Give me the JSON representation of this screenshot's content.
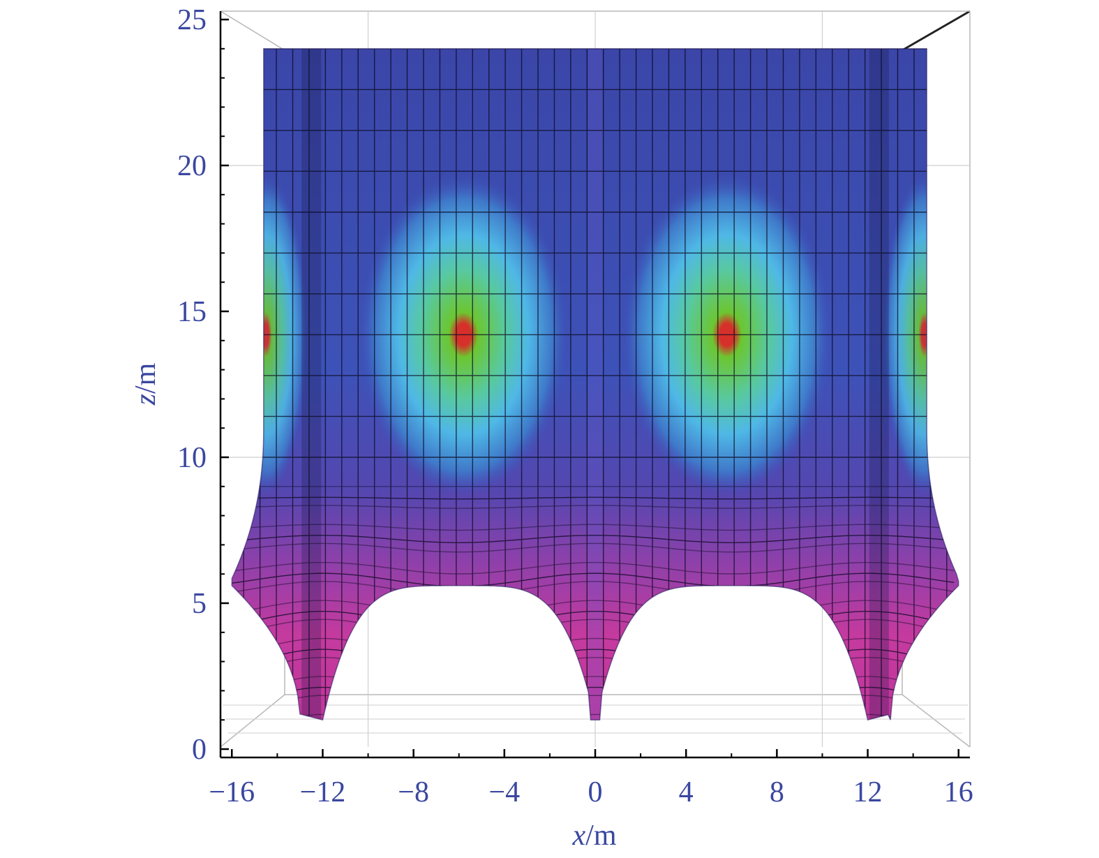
{
  "chart_data": {
    "type": "surface",
    "title": "",
    "xlabel": {
      "var": "x",
      "unit": "/m"
    },
    "ylabel": {
      "var": "z",
      "unit": "/m"
    },
    "xlim": [
      -16.5,
      16.5
    ],
    "ylim": [
      0,
      25
    ],
    "x_ticks": [
      -16,
      -12,
      -8,
      -4,
      0,
      4,
      8,
      12,
      16
    ],
    "y_ticks": [
      0,
      5,
      10,
      15,
      20,
      25
    ],
    "x_tick_labels": [
      "−16",
      "−12",
      "−8",
      "−4",
      "0",
      "4",
      "8",
      "12",
      "16"
    ],
    "y_tick_labels": [
      "0",
      "5",
      "10",
      "15",
      "20",
      "25"
    ],
    "surface_top_z": 24,
    "surface_x_extent": [
      -14.8,
      14.8
    ],
    "peaks": [
      {
        "x": -5.8,
        "z": 14.2
      },
      {
        "x": 5.8,
        "z": 14.2
      },
      {
        "x": -14.5,
        "z": 14.2
      },
      {
        "x": 14.5,
        "z": 14.2
      }
    ],
    "colors": {
      "low": "#c43a9e",
      "mid": "#3b4fb5",
      "high_cyan": "#55c8e8",
      "high_green": "#7ccf2e",
      "peak": "#d6302a",
      "axis_text": "#3a47a0"
    }
  }
}
